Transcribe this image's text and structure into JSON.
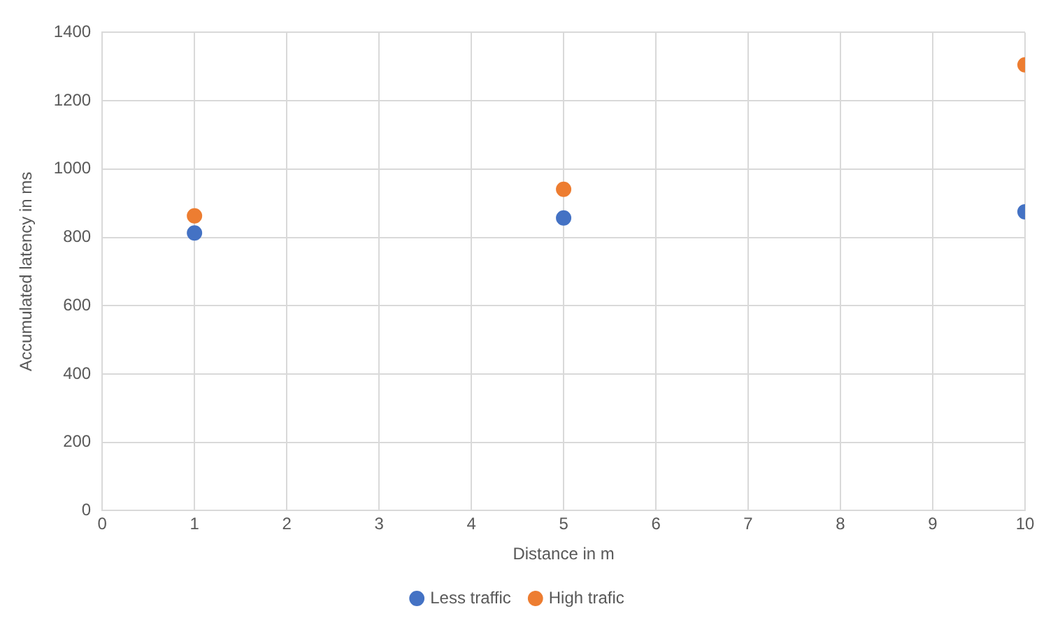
{
  "chart_data": {
    "type": "scatter",
    "xlabel": "Distance in m",
    "ylabel": "Accumulated latency in ms",
    "xlim": [
      0,
      10
    ],
    "xticks": [
      0,
      1,
      2,
      3,
      4,
      5,
      6,
      7,
      8,
      9,
      10
    ],
    "ylim": [
      0,
      1400
    ],
    "yticks": [
      0,
      200,
      400,
      600,
      800,
      1000,
      1200,
      1400
    ],
    "grid": true,
    "legend": "bottom",
    "marker": "circle",
    "series": [
      {
        "name": "Less traffic",
        "color": "#4472c4",
        "x": [
          1,
          5,
          10
        ],
        "values": [
          813,
          857,
          875
        ]
      },
      {
        "name": "High trafic",
        "color": "#ed7d31",
        "x": [
          1,
          5,
          10
        ],
        "values": [
          863,
          941,
          1305
        ]
      }
    ]
  }
}
